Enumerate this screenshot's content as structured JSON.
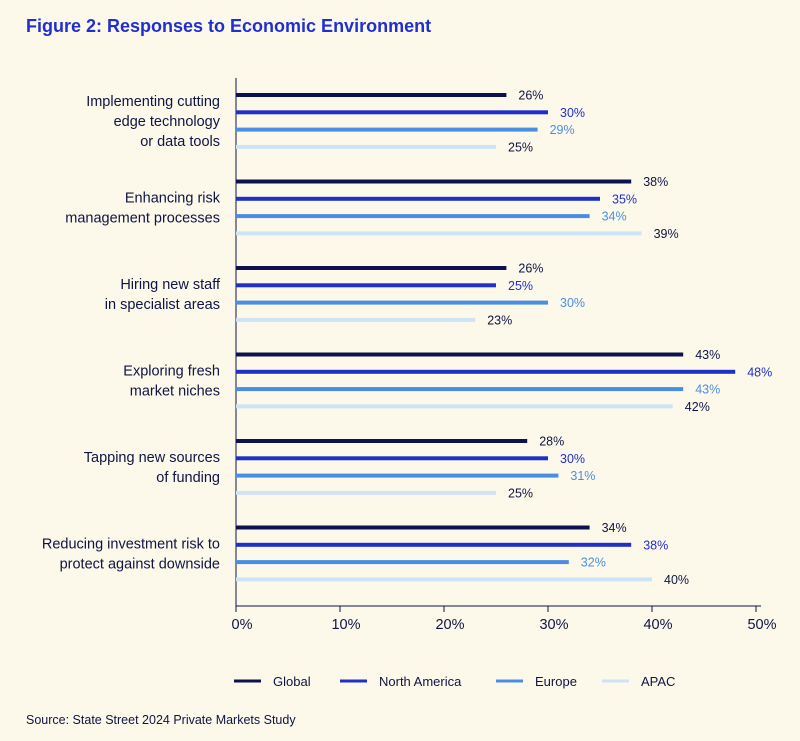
{
  "title": "Figure 2: Responses to Economic Environment",
  "source": "Source: State Street 2024 Private Markets Study",
  "colors": {
    "background": "#fdf9ea",
    "title": "#1f2fd1",
    "text": "#0e1444"
  },
  "chart_data": {
    "type": "bar",
    "orientation": "horizontal",
    "categories": [
      [
        "Implementing cutting",
        "edge technology",
        "or data tools"
      ],
      [
        "Enhancing risk",
        "management processes"
      ],
      [
        "Hiring new staff",
        "in specialist areas"
      ],
      [
        "Exploring fresh",
        "market niches"
      ],
      [
        "Tapping new sources",
        "of funding"
      ],
      [
        "Reducing investment risk to",
        "protect against downside"
      ]
    ],
    "series": [
      {
        "name": "Global",
        "color": "#0d1150",
        "label_color": "#0e1444",
        "values": [
          26,
          38,
          26,
          43,
          28,
          34
        ]
      },
      {
        "name": "North America",
        "color": "#1f2fc8",
        "label_color": "#1f2fc8",
        "values": [
          30,
          35,
          25,
          48,
          30,
          38
        ]
      },
      {
        "name": "Europe",
        "color": "#4a8ee3",
        "label_color": "#4a8ee3",
        "values": [
          29,
          34,
          30,
          43,
          31,
          32
        ]
      },
      {
        "name": "APAC",
        "color": "#cfe3f7",
        "label_color": "#0e1444",
        "values": [
          25,
          39,
          23,
          42,
          25,
          40
        ]
      }
    ],
    "xlim": [
      0,
      50
    ],
    "xticks": [
      "0%",
      "10%",
      "20%",
      "30%",
      "40%",
      "50%"
    ],
    "value_suffix": "%",
    "legend_position": "bottom"
  }
}
